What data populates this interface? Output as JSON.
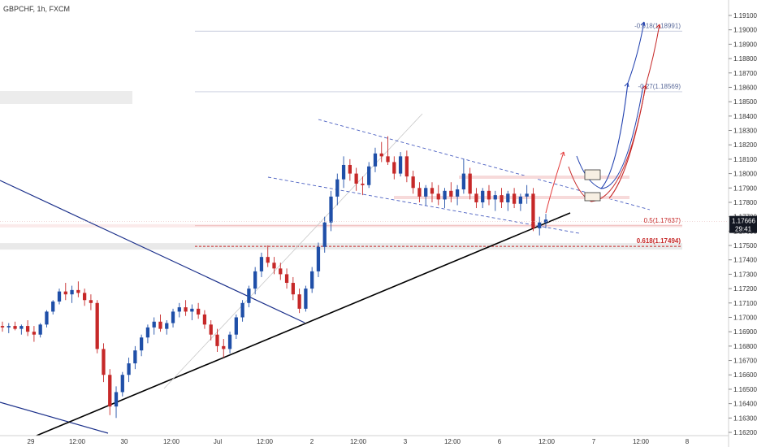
{
  "chart_data": {
    "type": "candlestick",
    "title": "GBPCHF, 1h, FXCM",
    "colors": {
      "up": "#1f4fa8",
      "down": "#c62828",
      "trend": "#000000",
      "channel": "#4a5fc1",
      "fib": "#c62828",
      "countdown_bg": "#131722"
    },
    "y_ticks": [
      1.171,
      1.17,
      1.169,
      1.168,
      1.167,
      1.166,
      1.165,
      1.164,
      1.163,
      1.162
    ],
    "y_ticks_full": [
      "1.19100",
      "1.19000",
      "1.18900",
      "1.18800",
      "1.18700",
      "1.18600",
      "1.18500",
      "1.18400",
      "1.18300",
      "1.18200",
      "1.18100",
      "1.18000",
      "1.17900",
      "1.17800",
      "1.17700",
      "1.17600",
      "1.17500",
      "1.17400",
      "1.17300",
      "1.17200",
      "1.17100",
      "1.17000",
      "1.16900",
      "1.16800",
      "1.16700",
      "1.16600",
      "1.16500",
      "1.16400",
      "1.16300",
      "1.16200"
    ],
    "x_ticks": [
      "29",
      "12:00",
      "30",
      "12:00",
      "Jul",
      "12:00",
      "2",
      "12:00",
      "3",
      "12:00",
      "6",
      "12:00",
      "7",
      "12:00",
      "8"
    ],
    "fib_levels": [
      {
        "label": "-0.618(1.18991)",
        "value": 1.18991
      },
      {
        "label": "-0.27(1.18569)",
        "value": 1.18569
      },
      {
        "label": "0.5(1.17637)",
        "value": 1.17637
      },
      {
        "label": "0.618(1.17494)",
        "value": 1.17494
      }
    ],
    "current_price": "1.17666",
    "countdown": "29:41",
    "candles": [
      [
        1.1694,
        1.1697,
        1.169,
        1.1693
      ],
      [
        1.1693,
        1.1696,
        1.1689,
        1.1694
      ],
      [
        1.1694,
        1.1697,
        1.1691,
        1.1692
      ],
      [
        1.1692,
        1.1695,
        1.1688,
        1.1694
      ],
      [
        1.1694,
        1.1698,
        1.1687,
        1.169
      ],
      [
        1.169,
        1.1694,
        1.1683,
        1.1688
      ],
      [
        1.1688,
        1.1696,
        1.1686,
        1.1695
      ],
      [
        1.1695,
        1.1705,
        1.1693,
        1.1704
      ],
      [
        1.1704,
        1.1712,
        1.1702,
        1.1711
      ],
      [
        1.1711,
        1.172,
        1.1709,
        1.1718
      ],
      [
        1.1718,
        1.1724,
        1.1712,
        1.1716
      ],
      [
        1.1716,
        1.1722,
        1.171,
        1.1719
      ],
      [
        1.1719,
        1.1725,
        1.1714,
        1.1717
      ],
      [
        1.1717,
        1.172,
        1.1708,
        1.1712
      ],
      [
        1.1712,
        1.1716,
        1.1705,
        1.171
      ],
      [
        1.171,
        1.1712,
        1.1675,
        1.1678
      ],
      [
        1.1678,
        1.1682,
        1.1655,
        1.166
      ],
      [
        1.166,
        1.1664,
        1.1632,
        1.1638
      ],
      [
        1.1638,
        1.1652,
        1.163,
        1.1648
      ],
      [
        1.1648,
        1.1662,
        1.1645,
        1.166
      ],
      [
        1.166,
        1.1672,
        1.1655,
        1.1668
      ],
      [
        1.1668,
        1.168,
        1.1664,
        1.1677
      ],
      [
        1.1677,
        1.1688,
        1.1673,
        1.1686
      ],
      [
        1.1686,
        1.1695,
        1.1682,
        1.1693
      ],
      [
        1.1693,
        1.17,
        1.1688,
        1.1697
      ],
      [
        1.1697,
        1.1702,
        1.169,
        1.1692
      ],
      [
        1.1692,
        1.1698,
        1.1688,
        1.1696
      ],
      [
        1.1696,
        1.1706,
        1.1693,
        1.1704
      ],
      [
        1.1704,
        1.171,
        1.17,
        1.1707
      ],
      [
        1.1707,
        1.1712,
        1.1701,
        1.1704
      ],
      [
        1.1704,
        1.1709,
        1.1698,
        1.1706
      ],
      [
        1.1706,
        1.171,
        1.1699,
        1.1702
      ],
      [
        1.1702,
        1.1705,
        1.1692,
        1.1695
      ],
      [
        1.1695,
        1.1698,
        1.1684,
        1.1688
      ],
      [
        1.1688,
        1.1692,
        1.1676,
        1.168
      ],
      [
        1.168,
        1.1685,
        1.1672,
        1.1678
      ],
      [
        1.1678,
        1.169,
        1.1675,
        1.1688
      ],
      [
        1.1688,
        1.1702,
        1.1685,
        1.17
      ],
      [
        1.17,
        1.1712,
        1.1697,
        1.171
      ],
      [
        1.171,
        1.1722,
        1.1707,
        1.172
      ],
      [
        1.172,
        1.1735,
        1.1716,
        1.1732
      ],
      [
        1.1732,
        1.1745,
        1.1728,
        1.1742
      ],
      [
        1.1742,
        1.175,
        1.1735,
        1.1738
      ],
      [
        1.1738,
        1.1742,
        1.173,
        1.1734
      ],
      [
        1.1734,
        1.1738,
        1.1726,
        1.173
      ],
      [
        1.173,
        1.1734,
        1.172,
        1.1724
      ],
      [
        1.1724,
        1.1728,
        1.1712,
        1.1716
      ],
      [
        1.1716,
        1.172,
        1.1703,
        1.1706
      ],
      [
        1.1706,
        1.1722,
        1.1704,
        1.172
      ],
      [
        1.172,
        1.1735,
        1.1717,
        1.1732
      ],
      [
        1.1732,
        1.1752,
        1.1728,
        1.1749
      ],
      [
        1.1749,
        1.177,
        1.1745,
        1.1766
      ],
      [
        1.1766,
        1.1788,
        1.176,
        1.1784
      ],
      [
        1.1784,
        1.18,
        1.1778,
        1.1796
      ],
      [
        1.1796,
        1.1812,
        1.179,
        1.1806
      ],
      [
        1.1806,
        1.181,
        1.1795,
        1.18
      ],
      [
        1.18,
        1.1804,
        1.1788,
        1.1793
      ],
      [
        1.1793,
        1.1798,
        1.1785,
        1.1792
      ],
      [
        1.1792,
        1.1808,
        1.179,
        1.1805
      ],
      [
        1.1805,
        1.1818,
        1.1801,
        1.1814
      ],
      [
        1.1814,
        1.1822,
        1.1808,
        1.1812
      ],
      [
        1.1812,
        1.1826,
        1.1806,
        1.1808
      ],
      [
        1.1808,
        1.1812,
        1.1796,
        1.18
      ],
      [
        1.18,
        1.1815,
        1.1798,
        1.1812
      ],
      [
        1.1812,
        1.1816,
        1.1794,
        1.1798
      ],
      [
        1.1798,
        1.1802,
        1.1786,
        1.179
      ],
      [
        1.179,
        1.1794,
        1.178,
        1.1784
      ],
      [
        1.1784,
        1.1792,
        1.1778,
        1.179
      ],
      [
        1.179,
        1.1794,
        1.178,
        1.1786
      ],
      [
        1.1786,
        1.1792,
        1.1778,
        1.1782
      ],
      [
        1.1782,
        1.179,
        1.1776,
        1.1788
      ],
      [
        1.1788,
        1.1794,
        1.178,
        1.1784
      ],
      [
        1.1784,
        1.1792,
        1.1778,
        1.1789
      ],
      [
        1.1789,
        1.181,
        1.1786,
        1.18
      ],
      [
        1.18,
        1.1804,
        1.1782,
        1.1786
      ],
      [
        1.1786,
        1.179,
        1.1776,
        1.178
      ],
      [
        1.178,
        1.179,
        1.1776,
        1.1788
      ],
      [
        1.1788,
        1.1792,
        1.1778,
        1.1782
      ],
      [
        1.1782,
        1.1788,
        1.1774,
        1.1785
      ],
      [
        1.1785,
        1.179,
        1.1776,
        1.178
      ],
      [
        1.178,
        1.1788,
        1.1774,
        1.1786
      ],
      [
        1.1786,
        1.179,
        1.1776,
        1.1779
      ],
      [
        1.1779,
        1.1786,
        1.1774,
        1.1784
      ],
      [
        1.1784,
        1.1792,
        1.1779,
        1.1786
      ],
      [
        1.1786,
        1.179,
        1.176,
        1.1762
      ],
      [
        1.1762,
        1.177,
        1.1757,
        1.1766
      ],
      [
        1.1766,
        1.1772,
        1.1762,
        1.1768
      ]
    ]
  }
}
